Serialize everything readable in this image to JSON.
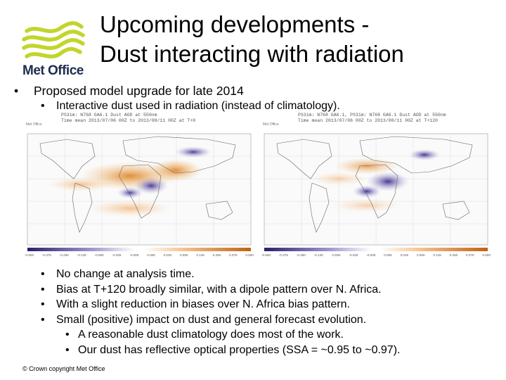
{
  "logo": {
    "text": "Met Office",
    "color": "#c2d52b"
  },
  "title": {
    "line1": "Upcoming developments -",
    "line2": "Dust interacting with radiation"
  },
  "main_bullet": "Proposed model upgrade for late 2014",
  "sub_bullet": "Interactive dust used in radiation (instead of climatology).",
  "maps": {
    "left": {
      "header_line1": "PS31m: N768 GA6.1 Dust AOD at 550nm",
      "header_line2": "Time mean 2013/07/06 00Z to 2013/08/11 00Z at T+0",
      "tag": "Met Office"
    },
    "right": {
      "header_line1": "PS31m: N768 GA6.1, PS31m: N768 GA6.1 Dust AOD at 550nm",
      "header_line2": "Time mean 2013/07/06 00Z to 2013/08/11 00Z at T+120",
      "tag": "Met Office"
    },
    "colorbar_ticks": [
      "-0.500",
      "-0.375",
      "-0.250",
      "-0.125",
      "-0.050",
      "-0.025",
      "-0.005",
      "0.005",
      "0.025",
      "0.050",
      "0.125",
      "0.250",
      "0.375",
      "0.500"
    ],
    "colors": {
      "negative": "#3b2e8f",
      "positive": "#e08a2c"
    }
  },
  "bullets": [
    "No change at analysis time.",
    "Bias at T+120 broadly similar, with a dipole pattern over N. Africa.",
    "With a slight reduction in biases over N. Africa bias pattern.",
    "Small (positive) impact on dust and general forecast evolution."
  ],
  "sub_bullets": [
    "A reasonable dust climatology does most of the work.",
    "Our dust has reflective optical properties (SSA = ~0.95 to ~0.97)."
  ],
  "bullet_symbol": "•",
  "footer": "© Crown copyright   Met Office"
}
